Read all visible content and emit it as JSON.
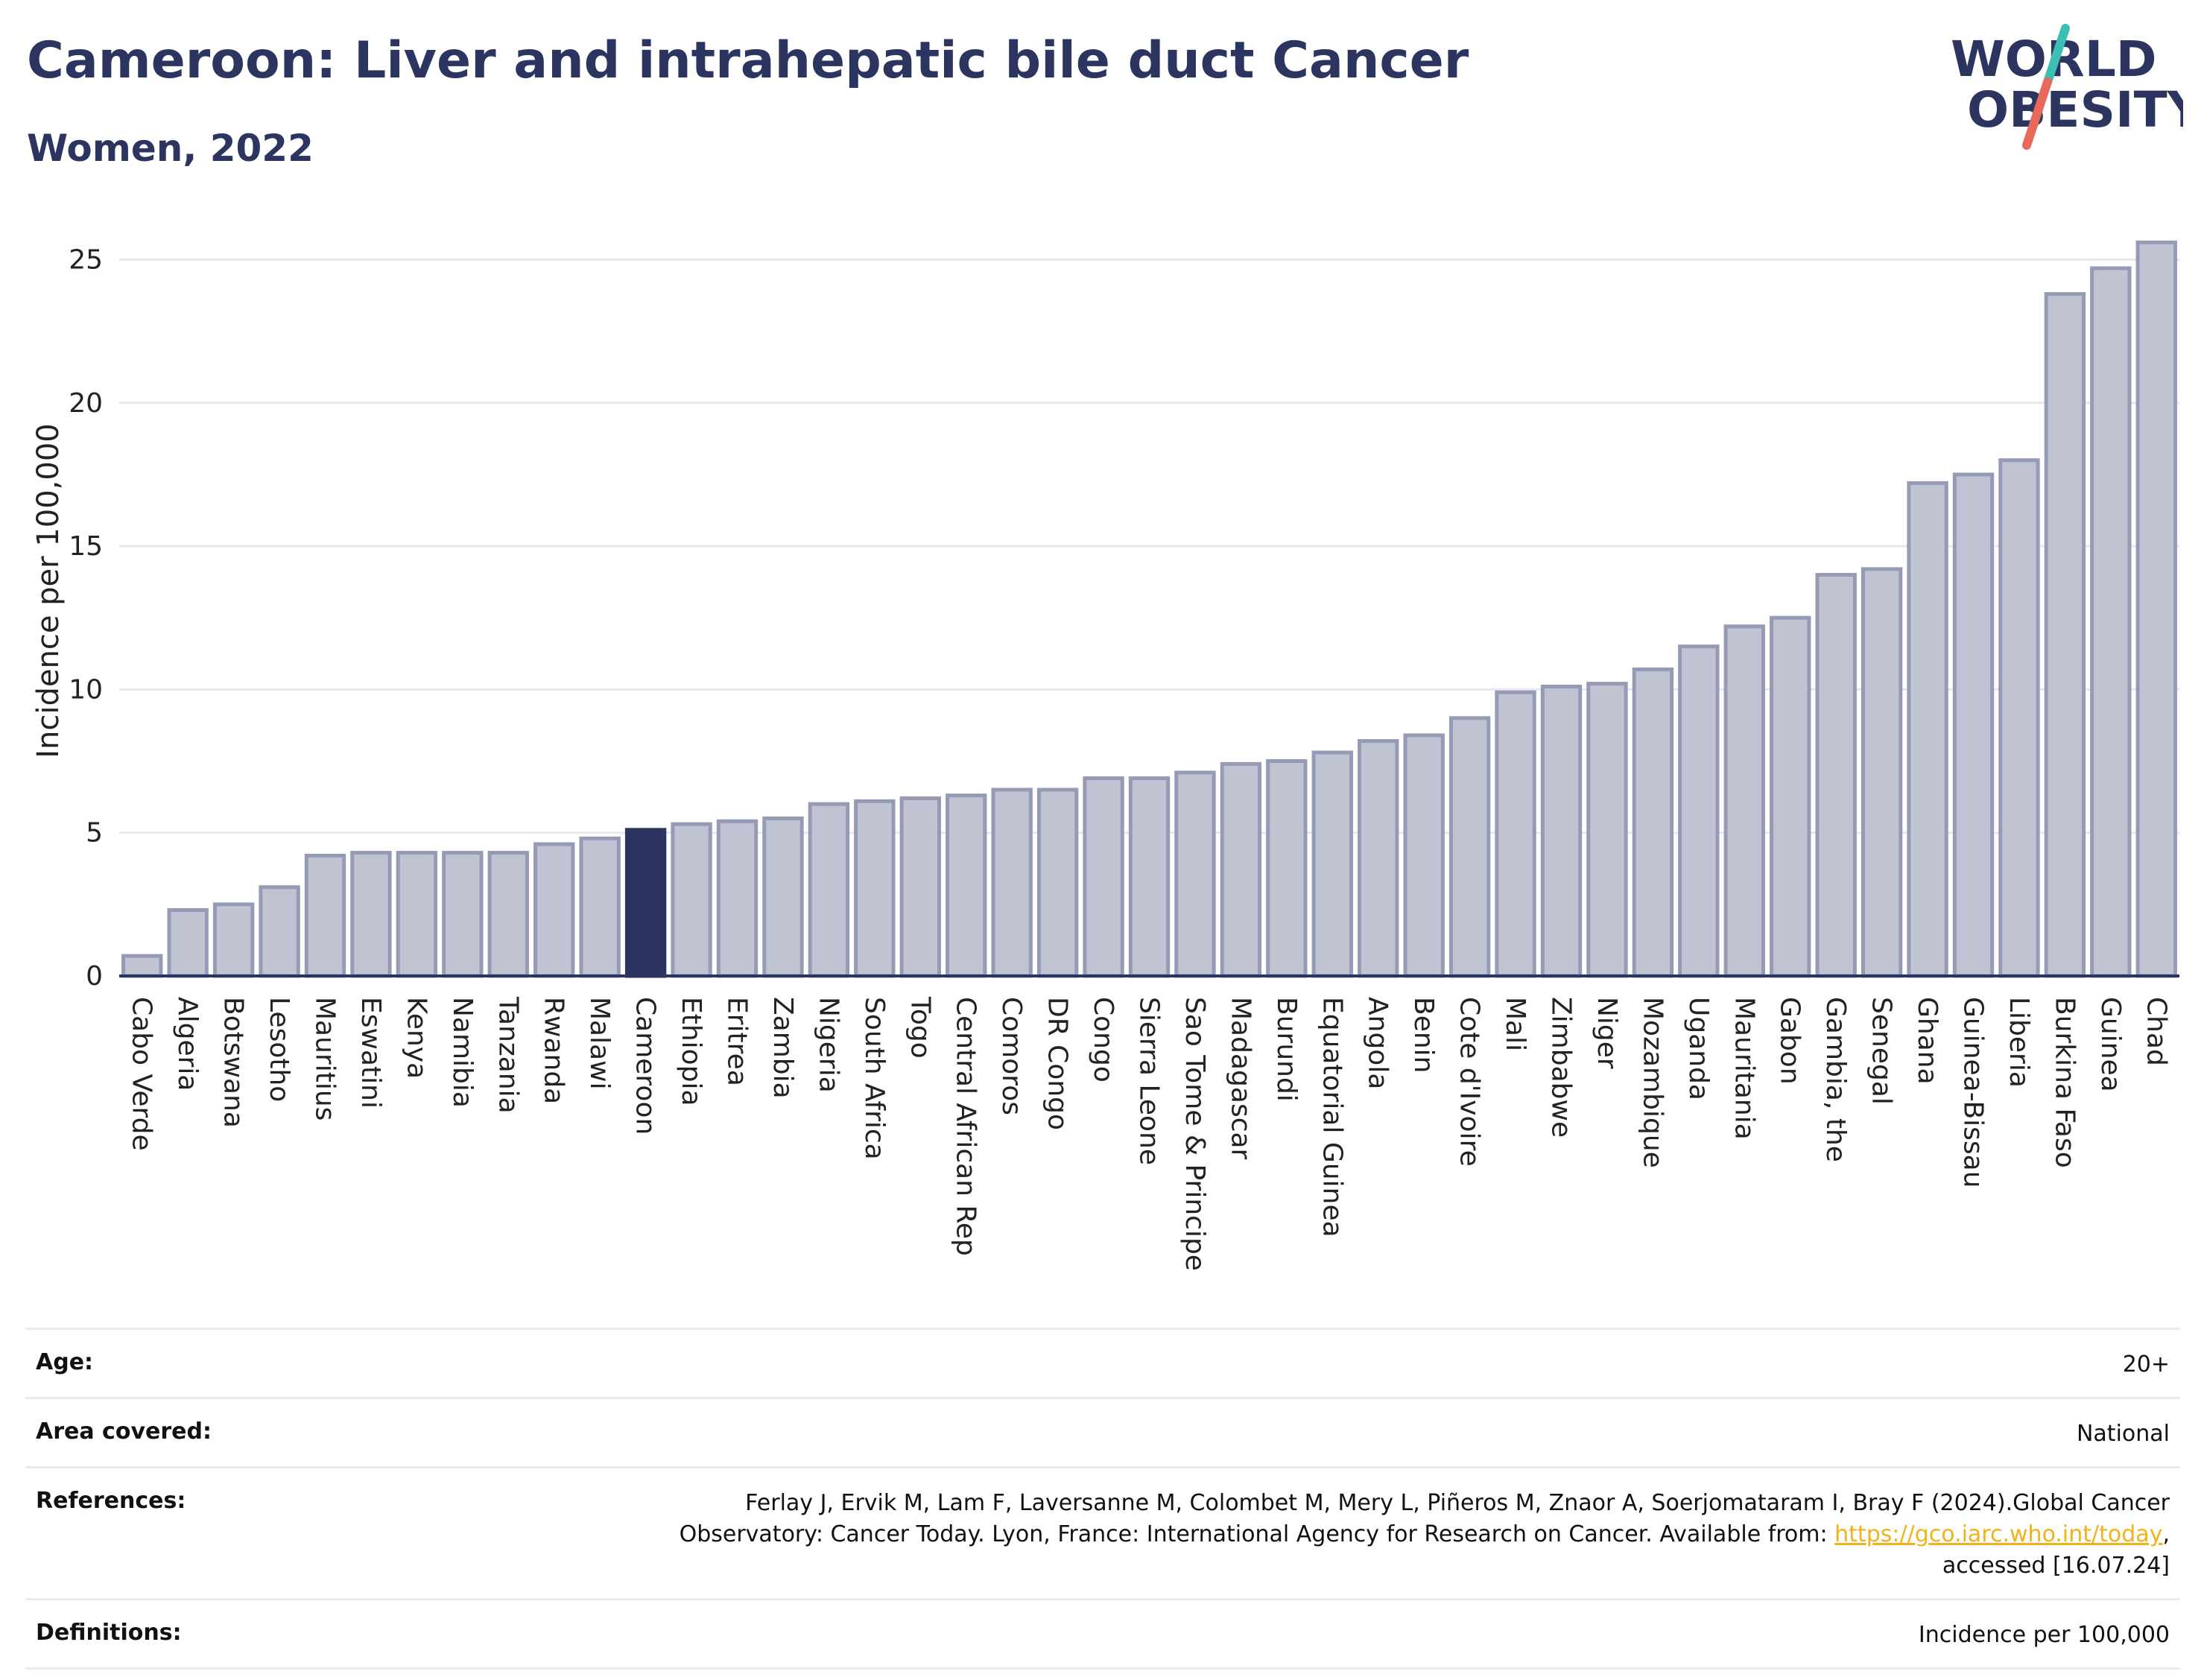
{
  "header": {
    "title": "Cameroon: Liver and intrahepatic bile duct Cancer",
    "subtitle": "Women, 2022"
  },
  "logo": {
    "line1": "WORLD",
    "line2": "OBESITY",
    "colors": {
      "navy": "#2b3560",
      "teal": "#3bbfb3",
      "coral": "#e8685a"
    }
  },
  "chart_data": {
    "type": "bar",
    "ylabel": "Incidence per 100,000",
    "xlabel": "",
    "ylim": [
      0,
      26
    ],
    "yticks": [
      0,
      5,
      10,
      15,
      20,
      25
    ],
    "grid": true,
    "highlight": "Cameroon",
    "colors": {
      "bar": "#c0c4d2",
      "bar_edge": "#959bb5",
      "highlight": "#2b3560",
      "grid": "#e6e8ee",
      "axis": "#2b3560"
    },
    "categories": [
      "Cabo Verde",
      "Algeria",
      "Botswana",
      "Lesotho",
      "Mauritius",
      "Eswatini",
      "Kenya",
      "Namibia",
      "Tanzania",
      "Rwanda",
      "Malawi",
      "Cameroon",
      "Ethiopia",
      "Eritrea",
      "Zambia",
      "Nigeria",
      "South Africa",
      "Togo",
      "Central African Rep",
      "Comoros",
      "DR Congo",
      "Congo",
      "Sierra Leone",
      "Sao Tome & Principe",
      "Madagascar",
      "Burundi",
      "Equatorial Guinea",
      "Angola",
      "Benin",
      "Cote d'Ivoire",
      "Mali",
      "Zimbabwe",
      "Niger",
      "Mozambique",
      "Uganda",
      "Mauritania",
      "Gabon",
      "Gambia, the",
      "Senegal",
      "Ghana",
      "Guinea-Bissau",
      "Liberia",
      "Burkina Faso",
      "Guinea",
      "Chad"
    ],
    "values": [
      0.7,
      2.3,
      2.5,
      3.1,
      4.2,
      4.3,
      4.3,
      4.3,
      4.3,
      4.6,
      4.8,
      5.1,
      5.3,
      5.4,
      5.5,
      6.0,
      6.1,
      6.2,
      6.3,
      6.5,
      6.5,
      6.9,
      6.9,
      7.1,
      7.4,
      7.5,
      7.8,
      8.2,
      8.4,
      9.0,
      9.9,
      10.1,
      10.2,
      10.7,
      11.5,
      12.2,
      12.5,
      14.0,
      14.2,
      17.2,
      17.5,
      18.0,
      23.8,
      24.7,
      25.6
    ]
  },
  "info": {
    "age_label": "Age:",
    "age_value": "20+",
    "area_label": "Area covered:",
    "area_value": "National",
    "references_label": "References:",
    "references_line1": "Ferlay J, Ervik M, Lam F, Laversanne M, Colombet M, Mery L, Piñeros M, Znaor A, Soerjomataram I, Bray F (2024).Global Cancer",
    "references_line2_pre": "Observatory: Cancer Today. Lyon, France: International Agency for Research on Cancer. Available from: ",
    "references_link": "https://gco.iarc.who.int/today",
    "references_line2_post": ",",
    "references_line3": "accessed [16.07.24]",
    "definitions_label": "Definitions:",
    "definitions_value": "Incidence per 100,000"
  }
}
